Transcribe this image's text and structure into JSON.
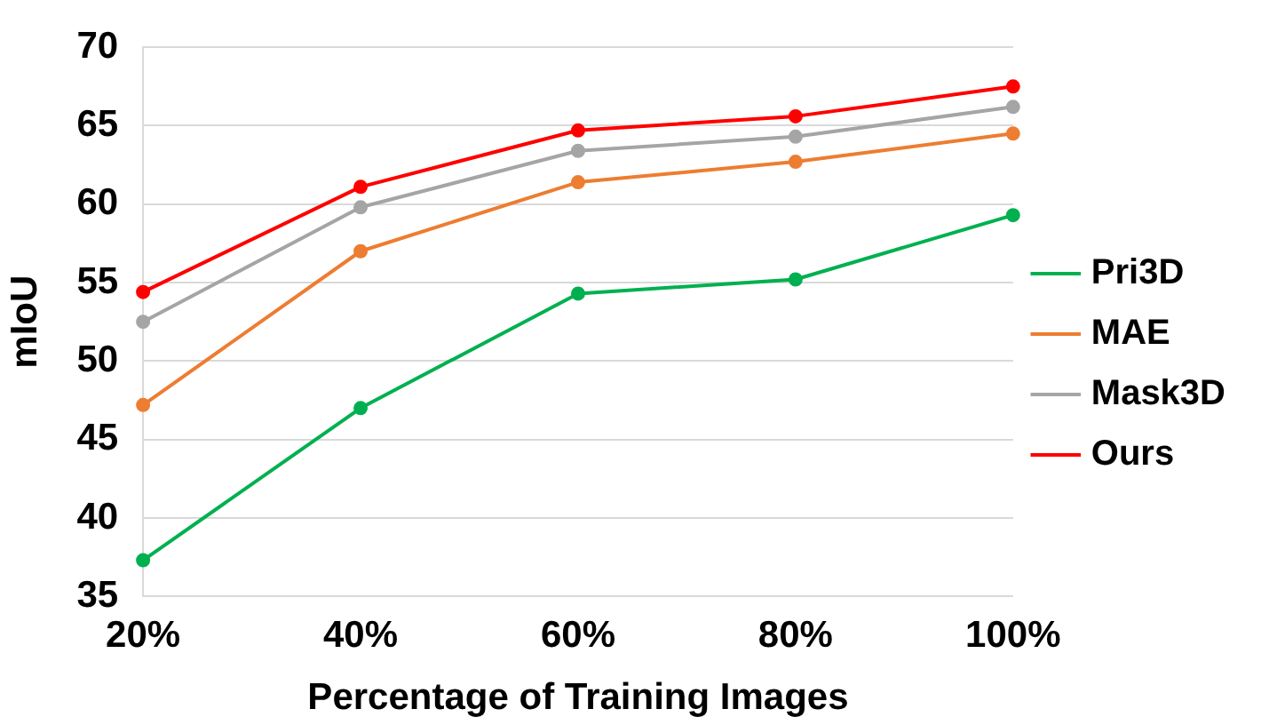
{
  "chart_data": {
    "type": "line",
    "xlabel": "Percentage of Training Images",
    "ylabel": "mIoU",
    "categories": [
      "20%",
      "40%",
      "60%",
      "80%",
      "100%"
    ],
    "series": [
      {
        "name": "Pri3D",
        "color": "#00b050",
        "values": [
          37.3,
          47.0,
          54.3,
          55.2,
          59.3
        ]
      },
      {
        "name": "MAE",
        "color": "#ed7d31",
        "values": [
          47.2,
          57.0,
          61.4,
          62.7,
          64.5
        ]
      },
      {
        "name": "Mask3D",
        "color": "#a5a5a5",
        "values": [
          52.5,
          59.8,
          63.4,
          64.3,
          66.2
        ]
      },
      {
        "name": "Ours",
        "color": "#ff0000",
        "values": [
          54.4,
          61.1,
          64.7,
          65.6,
          67.5
        ]
      }
    ],
    "ylim": [
      35,
      70
    ],
    "yticks": [
      35,
      40,
      45,
      50,
      55,
      60,
      65,
      70
    ],
    "grid": "y",
    "legend": "right",
    "marker": "circle",
    "line_style": "solid"
  }
}
